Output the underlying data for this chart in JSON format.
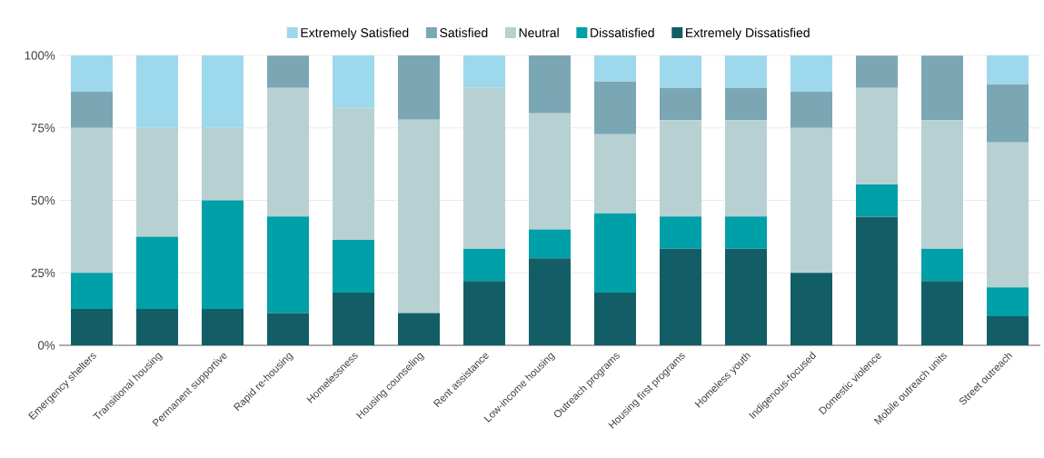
{
  "chart_data": {
    "type": "bar",
    "stacked": true,
    "categories": [
      "Emergency shelters",
      "Transitional housing",
      "Permanent supportive",
      "Rapid re-housing",
      "Homelessness",
      "Housing counseling",
      "Rent assistance",
      "Low-income housing",
      "Outreach programs",
      "Housing first programs",
      "Homeless youth",
      "Indigenous-focused",
      "Domestic violence",
      "Mobile outreach units",
      "Street outreach"
    ],
    "series": [
      {
        "name": "Extremely Dissatisfied",
        "color": "#135e66",
        "values": [
          12.5,
          12.5,
          12.5,
          11.1,
          18.2,
          11.1,
          22.2,
          30,
          18.2,
          33.3,
          33.3,
          25,
          44.4,
          22.2,
          10
        ]
      },
      {
        "name": "Dissatisfied",
        "color": "#00a0a8",
        "values": [
          12.5,
          25,
          37.5,
          33.3,
          18.2,
          0,
          11.1,
          10,
          27.3,
          11.1,
          11.1,
          0,
          11.1,
          11.1,
          10
        ]
      },
      {
        "name": "Neutral",
        "color": "#b7d1d2",
        "values": [
          50,
          37.5,
          25,
          44.4,
          45.5,
          66.7,
          55.6,
          40,
          27.3,
          33.3,
          33.3,
          50,
          33.3,
          44.4,
          50
        ]
      },
      {
        "name": "Satisfied",
        "color": "#7ba7b5",
        "values": [
          12.5,
          0,
          0,
          11.1,
          0,
          22.2,
          0,
          20,
          18.2,
          11.1,
          11.1,
          12.5,
          11.1,
          22.2,
          20
        ]
      },
      {
        "name": "Extremely Satisfied",
        "color": "#9ed8ec",
        "values": [
          12.5,
          25,
          25,
          0,
          18.2,
          0,
          11.1,
          0,
          9.1,
          11.1,
          11.1,
          12.5,
          0,
          0,
          10
        ]
      }
    ],
    "ylim": [
      0,
      100
    ],
    "yticks": [
      {
        "value": 0,
        "label": "0%"
      },
      {
        "value": 25,
        "label": "25%"
      },
      {
        "value": 50,
        "label": "50%"
      },
      {
        "value": 75,
        "label": "75%"
      },
      {
        "value": 100,
        "label": "100%"
      }
    ],
    "grid": "y",
    "legend": "top"
  }
}
